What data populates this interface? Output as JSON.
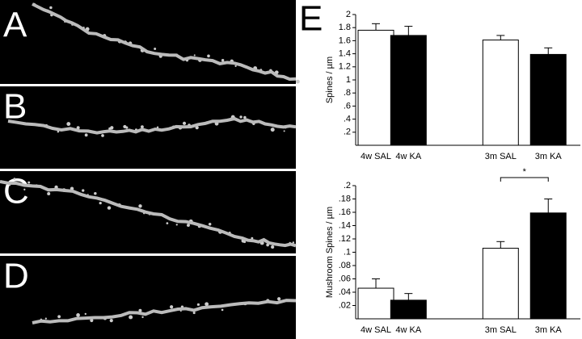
{
  "panels": [
    "A",
    "B",
    "C",
    "D",
    "E"
  ],
  "chart_data": [
    {
      "type": "bar",
      "ylabel": "Spines / µm",
      "categories": [
        "4w SAL",
        "4w KA",
        "3m SAL",
        "3m KA"
      ],
      "values": [
        1.76,
        1.68,
        1.61,
        1.39
      ],
      "errors": [
        0.1,
        0.14,
        0.07,
        0.1
      ],
      "colors": [
        "#ffffff",
        "#000000",
        "#ffffff",
        "#000000"
      ],
      "ylim": [
        0,
        2
      ],
      "yticks": [
        {
          "value": 0.2,
          "label": ".2"
        },
        {
          "value": 0.4,
          "label": ".4"
        },
        {
          "value": 0.6,
          "label": ".6"
        },
        {
          "value": 0.8,
          "label": ".8"
        },
        1,
        1.2,
        1.4,
        1.6,
        1.8,
        2
      ]
    },
    {
      "type": "bar",
      "ylabel": "Mushroom Spines / µm",
      "categories": [
        "4w SAL",
        "4w KA",
        "3m SAL",
        "3m KA"
      ],
      "values": [
        0.046,
        0.028,
        0.106,
        0.159
      ],
      "errors": [
        0.014,
        0.01,
        0.01,
        0.021
      ],
      "colors": [
        "#ffffff",
        "#000000",
        "#ffffff",
        "#000000"
      ],
      "ylim": [
        0,
        0.2
      ],
      "yticks": [
        {
          "value": 0.02,
          "label": ".02"
        },
        {
          "value": 0.04,
          "label": ".04"
        },
        {
          "value": 0.06,
          "label": ".06"
        },
        {
          "value": 0.08,
          "label": ".08"
        },
        {
          "value": 0.1,
          "label": ".1"
        },
        {
          "value": 0.12,
          "label": ".12"
        },
        {
          "value": 0.14,
          "label": ".14"
        },
        {
          "value": 0.16,
          "label": ".16"
        },
        {
          "value": 0.18,
          "label": ".18"
        },
        {
          "value": 0.2,
          "label": ".2"
        }
      ],
      "annotation": "*"
    }
  ]
}
